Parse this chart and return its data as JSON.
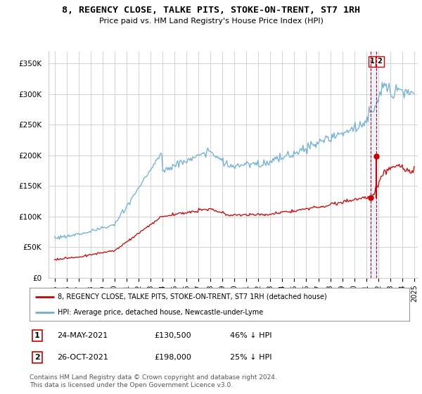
{
  "title": "8, REGENCY CLOSE, TALKE PITS, STOKE-ON-TRENT, ST7 1RH",
  "subtitle": "Price paid vs. HM Land Registry's House Price Index (HPI)",
  "ylabel_ticks": [
    "£0",
    "£50K",
    "£100K",
    "£150K",
    "£200K",
    "£250K",
    "£300K",
    "£350K"
  ],
  "ytick_values": [
    0,
    50000,
    100000,
    150000,
    200000,
    250000,
    300000,
    350000
  ],
  "ylim": [
    0,
    370000
  ],
  "xlim_start": 1994.5,
  "xlim_end": 2025.3,
  "hpi_color": "#6baed6",
  "price_color": "#cc0000",
  "vline_color": "#cc0000",
  "highlight_color": "#ddeeff",
  "marker1_date": 2021.38,
  "marker1_price": 130500,
  "marker2_date": 2021.82,
  "marker2_price": 198000,
  "legend_label1": "8, REGENCY CLOSE, TALKE PITS, STOKE-ON-TRENT, ST7 1RH (detached house)",
  "legend_label2": "HPI: Average price, detached house, Newcastle-under-Lyme",
  "table_row1": [
    "1",
    "24-MAY-2021",
    "£130,500",
    "46% ↓ HPI"
  ],
  "table_row2": [
    "2",
    "26-OCT-2021",
    "£198,000",
    "25% ↓ HPI"
  ],
  "footnote": "Contains HM Land Registry data © Crown copyright and database right 2024.\nThis data is licensed under the Open Government Licence v3.0.",
  "background_color": "#ffffff",
  "grid_color": "#cccccc"
}
